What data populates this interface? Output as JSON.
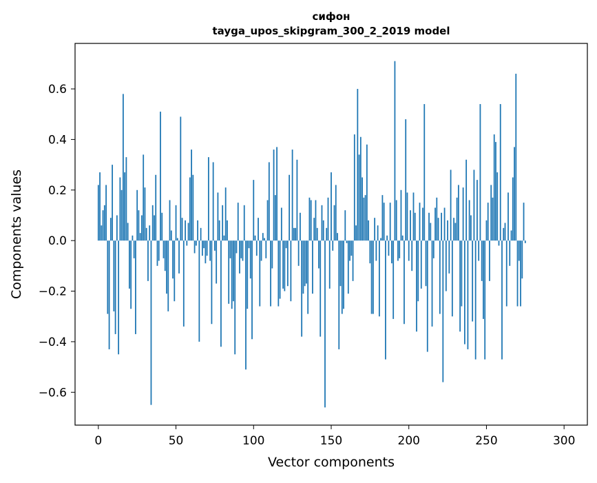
{
  "chart_data": {
    "type": "bar",
    "title": "сифон",
    "subtitle": "tayga_upos_skipgram_300_2_2019 model",
    "xlabel": "Vector components",
    "ylabel": "Components values",
    "xlim": [
      -15,
      315
    ],
    "ylim": [
      -0.73,
      0.78
    ],
    "xticks": [
      0,
      50,
      100,
      150,
      200,
      250,
      300
    ],
    "xtick_labels": [
      "0",
      "50",
      "100",
      "150",
      "200",
      "250",
      "300"
    ],
    "yticks": [
      -0.6,
      -0.4,
      -0.2,
      0.0,
      0.2,
      0.4,
      0.6
    ],
    "ytick_labels": [
      "−0.6",
      "−0.4",
      "−0.2",
      "0.0",
      "0.2",
      "0.4",
      "0.6"
    ],
    "grid": false,
    "bar_color": "#1f77b4",
    "values": [
      0.22,
      0.27,
      0.06,
      0.12,
      0.14,
      0.22,
      -0.29,
      -0.43,
      0.09,
      0.3,
      -0.28,
      -0.37,
      0.1,
      -0.45,
      0.25,
      0.2,
      0.58,
      0.27,
      0.33,
      0.07,
      -0.19,
      -0.27,
      0.02,
      -0.07,
      -0.37,
      0.2,
      0.12,
      0.03,
      0.1,
      0.34,
      0.21,
      0.05,
      -0.16,
      0.06,
      -0.65,
      0.14,
      0.1,
      0.26,
      -0.1,
      -0.08,
      0.51,
      0.11,
      -0.07,
      -0.12,
      -0.21,
      -0.28,
      0.16,
      0.04,
      -0.15,
      -0.24,
      0.14,
      0.01,
      -0.13,
      0.49,
      0.09,
      -0.34,
      0.08,
      -0.02,
      0.07,
      0.25,
      0.36,
      0.26,
      -0.05,
      -0.02,
      0.08,
      -0.4,
      0.05,
      -0.06,
      -0.03,
      -0.09,
      -0.06,
      0.33,
      -0.08,
      -0.33,
      0.31,
      -0.04,
      -0.17,
      0.19,
      0.08,
      -0.42,
      0.14,
      0.02,
      0.21,
      0.08,
      -0.25,
      -0.07,
      -0.27,
      -0.24,
      -0.45,
      -0.05,
      0.15,
      -0.13,
      -0.07,
      -0.08,
      0.14,
      -0.51,
      -0.27,
      -0.03,
      -0.15,
      -0.39,
      0.24,
      0.02,
      -0.06,
      0.09,
      -0.26,
      -0.08,
      0.03,
      0.01,
      -0.07,
      0.16,
      0.31,
      -0.26,
      -0.11,
      0.36,
      0.18,
      0.37,
      -0.26,
      -0.23,
      0.13,
      -0.19,
      -0.2,
      -0.03,
      -0.18,
      0.26,
      -0.24,
      0.36,
      0.05,
      0.05,
      0.32,
      -0.1,
      0.11,
      -0.38,
      -0.21,
      -0.18,
      -0.17,
      -0.29,
      0.17,
      0.16,
      -0.21,
      0.09,
      0.16,
      0.05,
      -0.11,
      -0.38,
      0.14,
      0.08,
      -0.66,
      0.05,
      0.17,
      -0.19,
      0.27,
      -0.04,
      0.14,
      0.22,
      0.03,
      -0.43,
      -0.18,
      -0.29,
      -0.27,
      0.12,
      -0.01,
      -0.21,
      -0.08,
      -0.06,
      -0.16,
      0.42,
      0.06,
      0.6,
      0.34,
      0.41,
      0.25,
      0.17,
      0.18,
      0.38,
      0.08,
      -0.09,
      -0.29,
      -0.29,
      0.09,
      -0.08,
      0.06,
      -0.3,
      0.01,
      0.18,
      0.15,
      -0.47,
      0.02,
      -0.06,
      0.15,
      -0.09,
      -0.31,
      0.71,
      0.16,
      -0.08,
      -0.07,
      0.2,
      0.02,
      -0.33,
      0.48,
      0.19,
      -0.08,
      0.12,
      -0.12,
      0.19,
      0.11,
      -0.36,
      -0.24,
      0.15,
      -0.19,
      0.13,
      0.54,
      -0.18,
      -0.44,
      0.11,
      0.07,
      -0.34,
      -0.07,
      0.13,
      0.17,
      0.09,
      -0.29,
      0.11,
      -0.56,
      0.13,
      -0.2,
      0.08,
      -0.13,
      0.28,
      -0.3,
      0.09,
      0.07,
      0.17,
      0.22,
      -0.36,
      -0.26,
      0.21,
      -0.41,
      0.32,
      -0.43,
      0.16,
      0.1,
      -0.32,
      0.28,
      -0.47,
      0.24,
      -0.08,
      0.54,
      -0.16,
      -0.31,
      -0.47,
      0.08,
      0.15,
      -0.16,
      0.22,
      0.17,
      0.42,
      0.39,
      0.27,
      -0.02,
      0.54,
      -0.47,
      0.05,
      0.07,
      -0.26,
      0.19,
      -0.1,
      0.04,
      0.25,
      0.37,
      0.66,
      -0.26,
      -0.08,
      -0.26,
      -0.15,
      0.15,
      -0.01
    ]
  }
}
